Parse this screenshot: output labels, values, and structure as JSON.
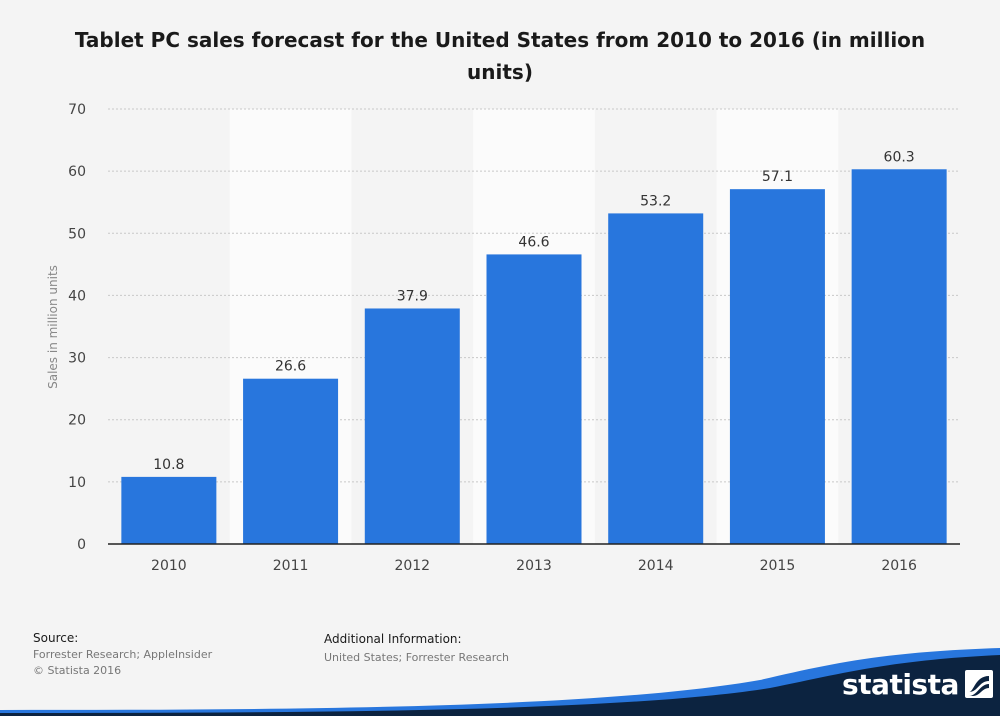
{
  "chart_data": {
    "type": "bar",
    "title": "Tablet PC sales forecast for the United States from 2010 to 2016 (in million units)",
    "xlabel": "",
    "ylabel": "Sales in million units",
    "categories": [
      "2010",
      "2011",
      "2012",
      "2013",
      "2014",
      "2015",
      "2016"
    ],
    "values": [
      10.8,
      26.6,
      37.9,
      46.6,
      53.2,
      57.1,
      60.3
    ],
    "data_labels": [
      "10.8",
      "26.6",
      "37.9",
      "46.6",
      "53.2",
      "57.1",
      "60.3"
    ],
    "ylim": [
      0,
      70
    ],
    "yticks": [
      "0",
      "10",
      "20",
      "30",
      "40",
      "50",
      "60",
      "70"
    ],
    "grid": true,
    "bar_color": "#2876dd"
  },
  "footer": {
    "source_heading": "Source:",
    "source_text": "Forrester Research; AppleInsider",
    "copyright": "© Statista 2016",
    "additional_heading": "Additional Information:",
    "additional_text": "United States; Forrester Research"
  },
  "brand": {
    "name": "statista",
    "logo_icon": "statista-logo-icon",
    "wave_color": "#2876dd",
    "dark_color": "#0c2340"
  }
}
